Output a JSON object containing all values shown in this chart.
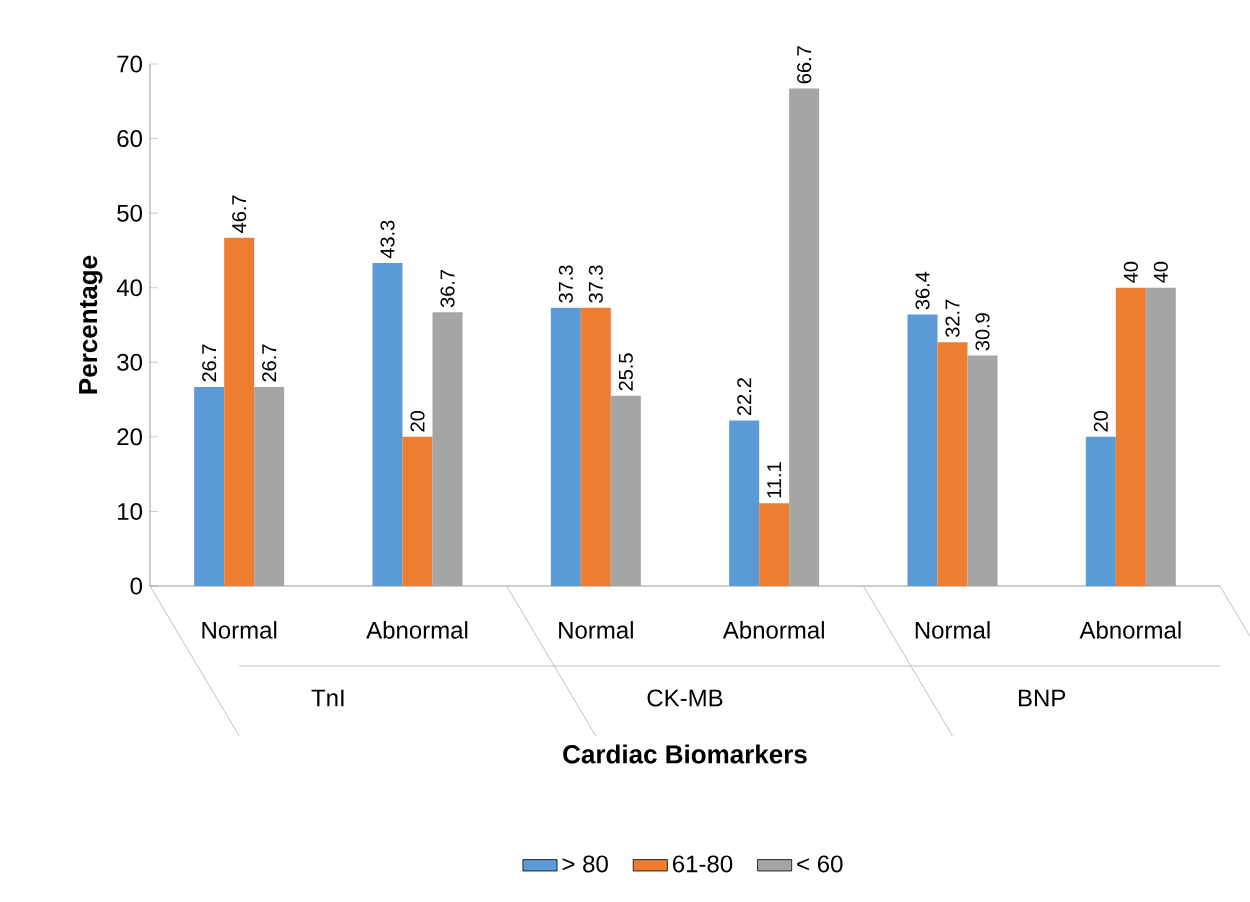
{
  "chart_data": {
    "type": "bar",
    "ylabel": "Percentage",
    "xlabel": "Cardiac Biomarkers",
    "categories": [
      "Normal",
      "Abnormal",
      "Normal",
      "Abnormal",
      "Normal",
      "Abnormal"
    ],
    "annotations": [
      "TnI",
      "CK-MB",
      "BNP"
    ],
    "series": [
      {
        "name": "> 80",
        "color": "#5b9bd5",
        "values": [
          26.7,
          43.3,
          37.3,
          22.2,
          36.4,
          20
        ]
      },
      {
        "name": "61-80",
        "color": "#ed7d31",
        "values": [
          46.7,
          20,
          37.3,
          11.1,
          32.7,
          40
        ]
      },
      {
        "name": "< 60",
        "color": "#a5a5a5",
        "values": [
          26.7,
          36.7,
          25.5,
          66.7,
          30.9,
          40
        ]
      }
    ],
    "ylim": [
      0,
      70
    ],
    "yticks": [
      0,
      10,
      20,
      30,
      40,
      50,
      60,
      70
    ],
    "data_labels": true,
    "legend": "bottom"
  }
}
